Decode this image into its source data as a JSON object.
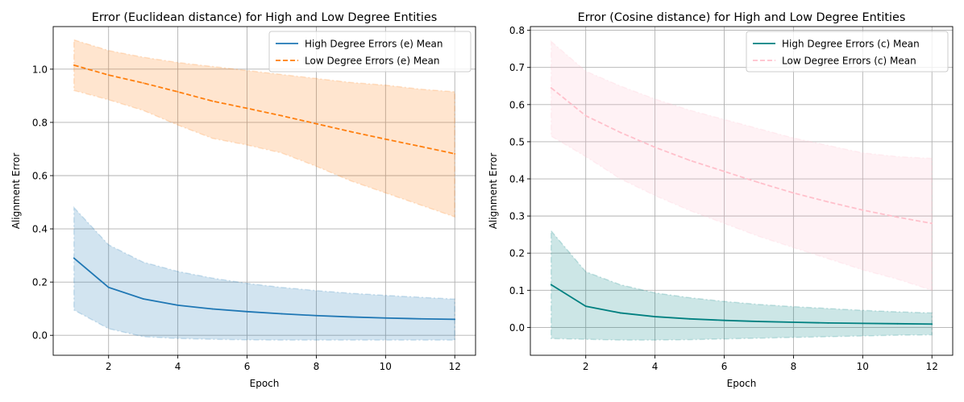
{
  "chart_data": [
    {
      "type": "line",
      "title": "Error (Euclidean distance) for High and Low Degree Entities",
      "xlabel": "Epoch",
      "ylabel": "Alignment Error",
      "xlim": [
        0.4,
        12.6
      ],
      "ylim": [
        -0.075,
        1.16
      ],
      "xticks": [
        2,
        4,
        6,
        8,
        10,
        12
      ],
      "yticks": [
        0.0,
        0.2,
        0.4,
        0.6,
        0.8,
        1.0
      ],
      "ytick_labels": [
        "0.0",
        "0.2",
        "0.4",
        "0.6",
        "0.8",
        "1.0"
      ],
      "grid": true,
      "legend_position": "top-right",
      "x": [
        1,
        2,
        3,
        4,
        5,
        6,
        7,
        8,
        9,
        10,
        11,
        12
      ],
      "series": [
        {
          "name": "High Degree Errors (e) Mean",
          "color": "#1f77b4",
          "band_color": "#1f77b4",
          "linestyle": "solid",
          "values": [
            0.29,
            0.18,
            0.137,
            0.113,
            0.099,
            0.089,
            0.081,
            0.074,
            0.069,
            0.065,
            0.062,
            0.06
          ],
          "upper": [
            0.48,
            0.34,
            0.275,
            0.24,
            0.215,
            0.195,
            0.18,
            0.168,
            0.158,
            0.15,
            0.143,
            0.136
          ],
          "lower": [
            0.095,
            0.025,
            -0.005,
            -0.012,
            -0.015,
            -0.017,
            -0.018,
            -0.018,
            -0.018,
            -0.018,
            -0.018,
            -0.018
          ]
        },
        {
          "name": "Low Degree Errors (e) Mean",
          "color": "#ff7f0e",
          "band_color": "#ff7f0e",
          "linestyle": "dashed",
          "values": [
            1.015,
            0.978,
            0.948,
            0.915,
            0.88,
            0.853,
            0.825,
            0.795,
            0.765,
            0.737,
            0.71,
            0.682
          ],
          "upper": [
            1.11,
            1.07,
            1.045,
            1.025,
            1.01,
            0.995,
            0.98,
            0.965,
            0.95,
            0.94,
            0.925,
            0.915
          ],
          "lower": [
            0.92,
            0.885,
            0.845,
            0.79,
            0.74,
            0.715,
            0.685,
            0.635,
            0.58,
            0.535,
            0.49,
            0.445
          ]
        }
      ]
    },
    {
      "type": "line",
      "title": "Error (Cosine distance) for High and Low Degree Entities",
      "xlabel": "Epoch",
      "ylabel": "Alignment Error",
      "xlim": [
        0.4,
        12.6
      ],
      "ylim": [
        -0.075,
        0.81
      ],
      "xticks": [
        2,
        4,
        6,
        8,
        10,
        12
      ],
      "yticks": [
        0.0,
        0.1,
        0.2,
        0.3,
        0.4,
        0.5,
        0.6,
        0.7,
        0.8
      ],
      "ytick_labels": [
        "0.0",
        "0.1",
        "0.2",
        "0.3",
        "0.4",
        "0.5",
        "0.6",
        "0.7",
        "0.8"
      ],
      "grid": true,
      "legend_position": "top-right",
      "x": [
        1,
        2,
        3,
        4,
        5,
        6,
        7,
        8,
        9,
        10,
        11,
        12
      ],
      "series": [
        {
          "name": "High Degree Errors (c) Mean",
          "color": "#008080",
          "band_color": "#008080",
          "linestyle": "solid",
          "values": [
            0.115,
            0.057,
            0.039,
            0.029,
            0.023,
            0.019,
            0.016,
            0.014,
            0.012,
            0.011,
            0.01,
            0.009
          ],
          "upper": [
            0.26,
            0.15,
            0.115,
            0.093,
            0.08,
            0.07,
            0.062,
            0.056,
            0.051,
            0.046,
            0.042,
            0.039
          ],
          "lower": [
            -0.03,
            -0.032,
            -0.034,
            -0.034,
            -0.033,
            -0.031,
            -0.029,
            -0.027,
            -0.025,
            -0.023,
            -0.021,
            -0.02
          ]
        },
        {
          "name": "Low Degree Errors (c) Mean",
          "color": "#ffc0cb",
          "band_color": "#ffc0cb",
          "linestyle": "dashed",
          "values": [
            0.645,
            0.57,
            0.525,
            0.485,
            0.45,
            0.42,
            0.39,
            0.362,
            0.338,
            0.316,
            0.297,
            0.28
          ],
          "upper": [
            0.77,
            0.69,
            0.65,
            0.615,
            0.585,
            0.56,
            0.535,
            0.51,
            0.49,
            0.47,
            0.46,
            0.455
          ],
          "lower": [
            0.515,
            0.46,
            0.4,
            0.355,
            0.315,
            0.28,
            0.245,
            0.215,
            0.185,
            0.155,
            0.13,
            0.1
          ]
        }
      ]
    }
  ]
}
